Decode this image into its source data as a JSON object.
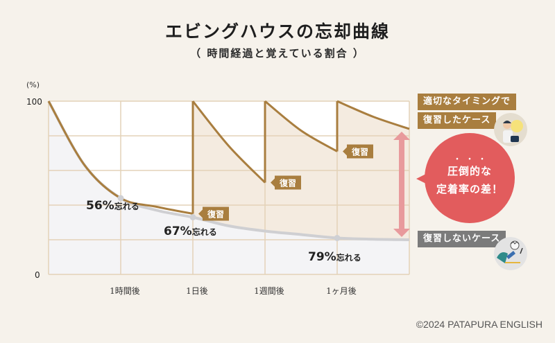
{
  "header": {
    "title": "エビングハウスの忘却曲線",
    "subtitle": "（ 時間経過と覚えている割合 ）"
  },
  "legend": {
    "reviewed_line1": "適切なタイミングで",
    "reviewed_line2": "復習したケース",
    "not_reviewed": "復習しないケース",
    "reviewed_icon": "person-with-lightbulb-illustration",
    "not_reviewed_icon": "person-stressed-at-laptop-illustration"
  },
  "bubble": {
    "emphasis_dots": "・・・",
    "line1": "圧倒的な",
    "line2": "定着率の差！"
  },
  "copyright": "©2024 PATAPURA ENGLISH",
  "colors": {
    "background": "#f6f2eb",
    "reviewed_line": "#a97e3f",
    "reviewed_fill": "#f4ebe0",
    "forget_line": "#cfcfd2",
    "forget_fill": "#f4f4f6",
    "grid": "#e3d2b8",
    "arrow": "#e89a9c",
    "bubble": "#e25c5d",
    "gray_label": "#7b7b7b"
  },
  "chart_data": {
    "type": "line",
    "title": "エビングハウスの忘却曲線",
    "subtitle": "（ 時間経過と覚えている割合 ）",
    "ylabel": "(%)",
    "xlabel": "",
    "ylim": [
      0,
      100
    ],
    "y_ticks": [
      "0",
      "100"
    ],
    "x_ticks": [
      "1時間後",
      "1日後",
      "1週間後",
      "1ヶ月後"
    ],
    "x_tick_positions": [
      1,
      2,
      3,
      4
    ],
    "xlim": [
      0,
      5
    ],
    "grid": true,
    "series": [
      {
        "name": "復習しないケース",
        "points": [
          [
            0,
            100
          ],
          [
            0.5,
            63
          ],
          [
            1,
            44
          ],
          [
            1.5,
            37
          ],
          [
            2,
            33
          ],
          [
            2.5,
            28
          ],
          [
            3,
            25
          ],
          [
            3.5,
            23
          ],
          [
            4,
            21
          ],
          [
            4.5,
            20.3
          ],
          [
            5,
            20
          ]
        ]
      },
      {
        "name": "適切なタイミングで復習したケース",
        "segments": [
          [
            [
              0,
              100
            ],
            [
              0.5,
              63
            ],
            [
              1,
              44
            ],
            [
              1.5,
              39
            ],
            [
              2,
              35
            ]
          ],
          [
            [
              2,
              35
            ],
            [
              2,
              100
            ]
          ],
          [
            [
              2,
              100
            ],
            [
              2.5,
              74
            ],
            [
              3,
              53
            ]
          ],
          [
            [
              3,
              53
            ],
            [
              3,
              100
            ]
          ],
          [
            [
              3,
              100
            ],
            [
              3.5,
              83
            ],
            [
              4,
              71
            ]
          ],
          [
            [
              4,
              71
            ],
            [
              4,
              100
            ]
          ],
          [
            [
              4,
              100
            ],
            [
              4.5,
              91
            ],
            [
              5,
              84
            ]
          ]
        ]
      }
    ],
    "markers": [
      {
        "x": 1,
        "y": 44,
        "series": "復習しないケース"
      },
      {
        "x": 2,
        "y": 33,
        "series": "復習しないケース"
      },
      {
        "x": 4,
        "y": 21,
        "series": "復習しないケース"
      }
    ],
    "annotations": [
      {
        "text_num": "56%",
        "text_suffix": "忘れる",
        "near_x": 1
      },
      {
        "text_num": "67%",
        "text_suffix": "忘れる",
        "near_x": 2
      },
      {
        "text_num": "79%",
        "text_suffix": "忘れる",
        "near_x": 4
      },
      {
        "text": "復習",
        "at": [
          2,
          35
        ]
      },
      {
        "text": "復習",
        "at": [
          3,
          53
        ]
      },
      {
        "text": "復習",
        "at": [
          4,
          71
        ]
      }
    ],
    "gap_arrow": {
      "x": 5,
      "from": 20,
      "to": 84
    }
  }
}
